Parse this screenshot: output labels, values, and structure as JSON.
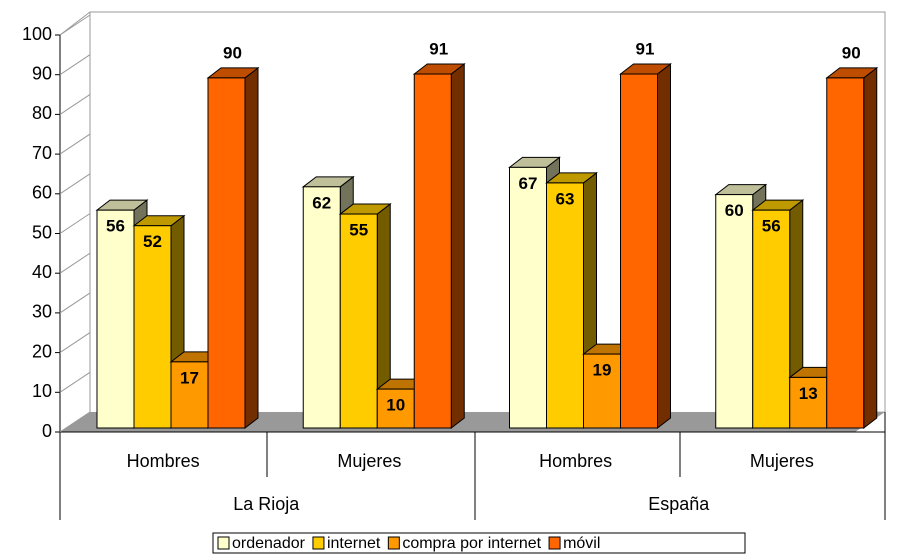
{
  "chart_data": {
    "type": "bar3d",
    "categories": [
      "Hombres",
      "Mujeres",
      "Hombres",
      "Mujeres"
    ],
    "groups": [
      "La Rioja",
      "España"
    ],
    "series": [
      {
        "name": "ordenador",
        "color": "#FFFFCC",
        "values": [
          56,
          62,
          67,
          60
        ]
      },
      {
        "name": "internet",
        "color": "#FFCC00",
        "values": [
          52,
          55,
          63,
          56
        ]
      },
      {
        "name": "compra por internet",
        "color": "#FF9900",
        "values": [
          17,
          10,
          19,
          13
        ]
      },
      {
        "name": "móvil",
        "color": "#FF6600",
        "values": [
          90,
          91,
          91,
          90
        ]
      }
    ],
    "ylim": [
      0,
      100
    ],
    "yticks": [
      0,
      10,
      20,
      30,
      40,
      50,
      60,
      70,
      80,
      90,
      100
    ],
    "legend": "bottom"
  }
}
